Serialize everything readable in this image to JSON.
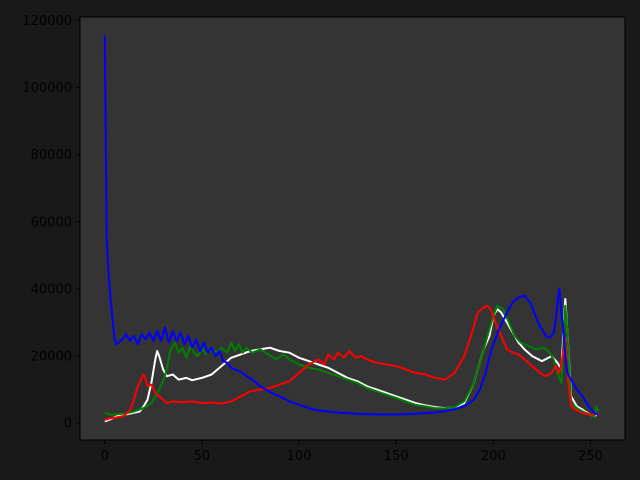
{
  "chart_data": {
    "type": "line",
    "title": "",
    "xlabel": "",
    "ylabel": "",
    "xlim": [
      -12.75,
      267.75
    ],
    "ylim": [
      -5000,
      121000
    ],
    "x_ticks": [
      0,
      50,
      100,
      150,
      200,
      250
    ],
    "y_ticks": [
      0,
      20000,
      40000,
      60000,
      80000,
      100000,
      120000
    ],
    "x_tick_labels": [
      "0",
      "50",
      "100",
      "150",
      "200",
      "250"
    ],
    "y_tick_labels": [
      "0",
      "20000",
      "40000",
      "60000",
      "80000",
      "100000",
      "120000"
    ],
    "grid": false,
    "legend": "none",
    "background_color": "#343434",
    "figure_color": "#191919",
    "series": [
      {
        "color": "#ffffff",
        "points": [
          [
            0,
            500
          ],
          [
            3,
            1200
          ],
          [
            6,
            2000
          ],
          [
            10,
            2500
          ],
          [
            14,
            3000
          ],
          [
            18,
            3500
          ],
          [
            20,
            5000
          ],
          [
            22,
            7000
          ],
          [
            24,
            12000
          ],
          [
            26,
            19000
          ],
          [
            27,
            21500
          ],
          [
            28,
            20000
          ],
          [
            30,
            16000
          ],
          [
            32,
            14000
          ],
          [
            35,
            14500
          ],
          [
            38,
            13000
          ],
          [
            42,
            13500
          ],
          [
            45,
            12800
          ],
          [
            50,
            13500
          ],
          [
            55,
            14500
          ],
          [
            60,
            17000
          ],
          [
            65,
            19500
          ],
          [
            70,
            20500
          ],
          [
            75,
            21500
          ],
          [
            80,
            22000
          ],
          [
            85,
            22500
          ],
          [
            90,
            21500
          ],
          [
            95,
            21000
          ],
          [
            100,
            19500
          ],
          [
            105,
            18500
          ],
          [
            110,
            17500
          ],
          [
            115,
            16500
          ],
          [
            120,
            15000
          ],
          [
            125,
            13500
          ],
          [
            130,
            12500
          ],
          [
            135,
            11000
          ],
          [
            140,
            10000
          ],
          [
            145,
            9000
          ],
          [
            150,
            8000
          ],
          [
            155,
            7000
          ],
          [
            160,
            6000
          ],
          [
            165,
            5300
          ],
          [
            170,
            4800
          ],
          [
            175,
            4500
          ],
          [
            180,
            4700
          ],
          [
            185,
            6000
          ],
          [
            190,
            12000
          ],
          [
            195,
            22000
          ],
          [
            198,
            26000
          ],
          [
            200,
            32000
          ],
          [
            202,
            34000
          ],
          [
            204,
            33000
          ],
          [
            207,
            30000
          ],
          [
            210,
            27000
          ],
          [
            213,
            24000
          ],
          [
            216,
            22000
          ],
          [
            220,
            20000
          ],
          [
            225,
            18500
          ],
          [
            230,
            20000
          ],
          [
            233,
            18000
          ],
          [
            235,
            16000
          ],
          [
            237,
            37000
          ],
          [
            238,
            28000
          ],
          [
            240,
            8000
          ],
          [
            243,
            5000
          ],
          [
            246,
            4000
          ],
          [
            250,
            2500
          ],
          [
            252,
            2000
          ],
          [
            254,
            3000
          ]
        ]
      },
      {
        "color": "#008000",
        "points": [
          [
            0,
            3200
          ],
          [
            3,
            2500
          ],
          [
            6,
            2700
          ],
          [
            10,
            2800
          ],
          [
            15,
            3500
          ],
          [
            20,
            4500
          ],
          [
            24,
            6000
          ],
          [
            28,
            10000
          ],
          [
            31,
            14000
          ],
          [
            34,
            22000
          ],
          [
            36,
            24000
          ],
          [
            38,
            21000
          ],
          [
            40,
            22500
          ],
          [
            42,
            19500
          ],
          [
            44,
            23000
          ],
          [
            46,
            21000
          ],
          [
            48,
            20000
          ],
          [
            50,
            22500
          ],
          [
            52,
            20500
          ],
          [
            55,
            22000
          ],
          [
            58,
            21000
          ],
          [
            60,
            22500
          ],
          [
            63,
            21000
          ],
          [
            65,
            24000
          ],
          [
            67,
            21500
          ],
          [
            69,
            23500
          ],
          [
            71,
            21000
          ],
          [
            73,
            22500
          ],
          [
            76,
            21000
          ],
          [
            80,
            22000
          ],
          [
            84,
            20500
          ],
          [
            88,
            19000
          ],
          [
            92,
            20500
          ],
          [
            95,
            19000
          ],
          [
            100,
            17500
          ],
          [
            105,
            16500
          ],
          [
            110,
            16000
          ],
          [
            115,
            15000
          ],
          [
            120,
            14000
          ],
          [
            125,
            13000
          ],
          [
            130,
            12000
          ],
          [
            135,
            10500
          ],
          [
            140,
            9500
          ],
          [
            145,
            8500
          ],
          [
            150,
            7500
          ],
          [
            155,
            6500
          ],
          [
            160,
            5500
          ],
          [
            165,
            5000
          ],
          [
            170,
            4500
          ],
          [
            175,
            4400
          ],
          [
            180,
            4800
          ],
          [
            185,
            6500
          ],
          [
            190,
            12000
          ],
          [
            193,
            18000
          ],
          [
            197,
            26000
          ],
          [
            200,
            32000
          ],
          [
            202,
            35000
          ],
          [
            205,
            34000
          ],
          [
            208,
            30000
          ],
          [
            211,
            26000
          ],
          [
            214,
            24000
          ],
          [
            218,
            23000
          ],
          [
            222,
            22000
          ],
          [
            226,
            22500
          ],
          [
            229,
            21000
          ],
          [
            231,
            19000
          ],
          [
            233,
            15000
          ],
          [
            235,
            12000
          ],
          [
            237,
            35000
          ],
          [
            238,
            28000
          ],
          [
            240,
            6000
          ],
          [
            243,
            4500
          ],
          [
            246,
            3500
          ],
          [
            250,
            2500
          ],
          [
            252,
            2000
          ],
          [
            253,
            5000
          ],
          [
            254,
            3500
          ]
        ]
      },
      {
        "color": "#ff0000",
        "points": [
          [
            0,
            1000
          ],
          [
            3,
            1500
          ],
          [
            6,
            1700
          ],
          [
            10,
            2200
          ],
          [
            13,
            4000
          ],
          [
            15,
            7000
          ],
          [
            17,
            11000
          ],
          [
            19,
            13500
          ],
          [
            20,
            14500
          ],
          [
            21,
            13000
          ],
          [
            22,
            11000
          ],
          [
            24,
            11500
          ],
          [
            26,
            9000
          ],
          [
            28,
            8000
          ],
          [
            30,
            7000
          ],
          [
            32,
            6000
          ],
          [
            35,
            6500
          ],
          [
            40,
            6200
          ],
          [
            45,
            6500
          ],
          [
            50,
            6000
          ],
          [
            55,
            6200
          ],
          [
            60,
            5800
          ],
          [
            65,
            6500
          ],
          [
            70,
            8000
          ],
          [
            75,
            9500
          ],
          [
            80,
            10000
          ],
          [
            85,
            10500
          ],
          [
            90,
            11500
          ],
          [
            95,
            12500
          ],
          [
            100,
            15000
          ],
          [
            105,
            17500
          ],
          [
            110,
            19000
          ],
          [
            113,
            17500
          ],
          [
            115,
            20500
          ],
          [
            118,
            19000
          ],
          [
            120,
            21000
          ],
          [
            123,
            19500
          ],
          [
            126,
            21500
          ],
          [
            129,
            19500
          ],
          [
            132,
            20000
          ],
          [
            135,
            19000
          ],
          [
            140,
            18000
          ],
          [
            145,
            17500
          ],
          [
            150,
            17000
          ],
          [
            155,
            16000
          ],
          [
            160,
            15000
          ],
          [
            165,
            14500
          ],
          [
            170,
            13500
          ],
          [
            175,
            13000
          ],
          [
            180,
            15000
          ],
          [
            185,
            20000
          ],
          [
            189,
            27000
          ],
          [
            192,
            33000
          ],
          [
            195,
            34500
          ],
          [
            197,
            35000
          ],
          [
            199,
            33500
          ],
          [
            201,
            30000
          ],
          [
            204,
            26000
          ],
          [
            207,
            22000
          ],
          [
            210,
            21000
          ],
          [
            213,
            20500
          ],
          [
            216,
            19000
          ],
          [
            220,
            17000
          ],
          [
            224,
            15000
          ],
          [
            227,
            14000
          ],
          [
            230,
            15000
          ],
          [
            232,
            17000
          ],
          [
            234,
            15000
          ],
          [
            236,
            21000
          ],
          [
            237,
            25000
          ],
          [
            238,
            15000
          ],
          [
            240,
            5000
          ],
          [
            243,
            3800
          ],
          [
            246,
            3000
          ],
          [
            250,
            2500
          ],
          [
            253,
            2800
          ],
          [
            254,
            3000
          ]
        ]
      },
      {
        "color": "#0000ff",
        "points": [
          [
            0,
            115500
          ],
          [
            1,
            55000
          ],
          [
            2,
            44000
          ],
          [
            3,
            37000
          ],
          [
            4,
            31000
          ],
          [
            5,
            25500
          ],
          [
            6,
            23500
          ],
          [
            8,
            24500
          ],
          [
            10,
            25500
          ],
          [
            11,
            26500
          ],
          [
            13,
            24500
          ],
          [
            15,
            26000
          ],
          [
            17,
            23500
          ],
          [
            19,
            26500
          ],
          [
            21,
            25000
          ],
          [
            23,
            27000
          ],
          [
            25,
            24500
          ],
          [
            27,
            27500
          ],
          [
            29,
            24500
          ],
          [
            31,
            28500
          ],
          [
            33,
            24000
          ],
          [
            35,
            27500
          ],
          [
            37,
            24500
          ],
          [
            39,
            27000
          ],
          [
            41,
            23500
          ],
          [
            43,
            26000
          ],
          [
            45,
            22500
          ],
          [
            47,
            25000
          ],
          [
            49,
            21500
          ],
          [
            51,
            24000
          ],
          [
            53,
            21000
          ],
          [
            55,
            22500
          ],
          [
            57,
            20000
          ],
          [
            59,
            21500
          ],
          [
            61,
            18500
          ],
          [
            63,
            18000
          ],
          [
            65,
            16500
          ],
          [
            67,
            16000
          ],
          [
            69,
            15500
          ],
          [
            71,
            15000
          ],
          [
            73,
            14000
          ],
          [
            76,
            13000
          ],
          [
            78,
            12000
          ],
          [
            80,
            11000
          ],
          [
            83,
            10000
          ],
          [
            86,
            9000
          ],
          [
            90,
            8000
          ],
          [
            95,
            6500
          ],
          [
            100,
            5500
          ],
          [
            105,
            4500
          ],
          [
            110,
            3800
          ],
          [
            115,
            3500
          ],
          [
            120,
            3200
          ],
          [
            125,
            3000
          ],
          [
            130,
            2800
          ],
          [
            135,
            2700
          ],
          [
            140,
            2600
          ],
          [
            145,
            2600
          ],
          [
            150,
            2600
          ],
          [
            155,
            2700
          ],
          [
            160,
            2800
          ],
          [
            165,
            3000
          ],
          [
            170,
            3200
          ],
          [
            175,
            3600
          ],
          [
            180,
            4200
          ],
          [
            185,
            5000
          ],
          [
            190,
            7000
          ],
          [
            193,
            10000
          ],
          [
            196,
            15000
          ],
          [
            199,
            22000
          ],
          [
            203,
            28000
          ],
          [
            207,
            33000
          ],
          [
            210,
            36000
          ],
          [
            213,
            37500
          ],
          [
            216,
            38000
          ],
          [
            219,
            36000
          ],
          [
            221,
            33000
          ],
          [
            223,
            30000
          ],
          [
            225,
            28000
          ],
          [
            227,
            26000
          ],
          [
            229,
            25500
          ],
          [
            231,
            27000
          ],
          [
            232,
            30000
          ],
          [
            233,
            36000
          ],
          [
            234,
            40000
          ],
          [
            235,
            33000
          ],
          [
            236,
            28000
          ],
          [
            237,
            20000
          ],
          [
            238,
            15000
          ],
          [
            240,
            13000
          ],
          [
            243,
            10000
          ],
          [
            246,
            8000
          ],
          [
            249,
            5000
          ],
          [
            252,
            3000
          ],
          [
            254,
            2500
          ]
        ]
      }
    ]
  }
}
